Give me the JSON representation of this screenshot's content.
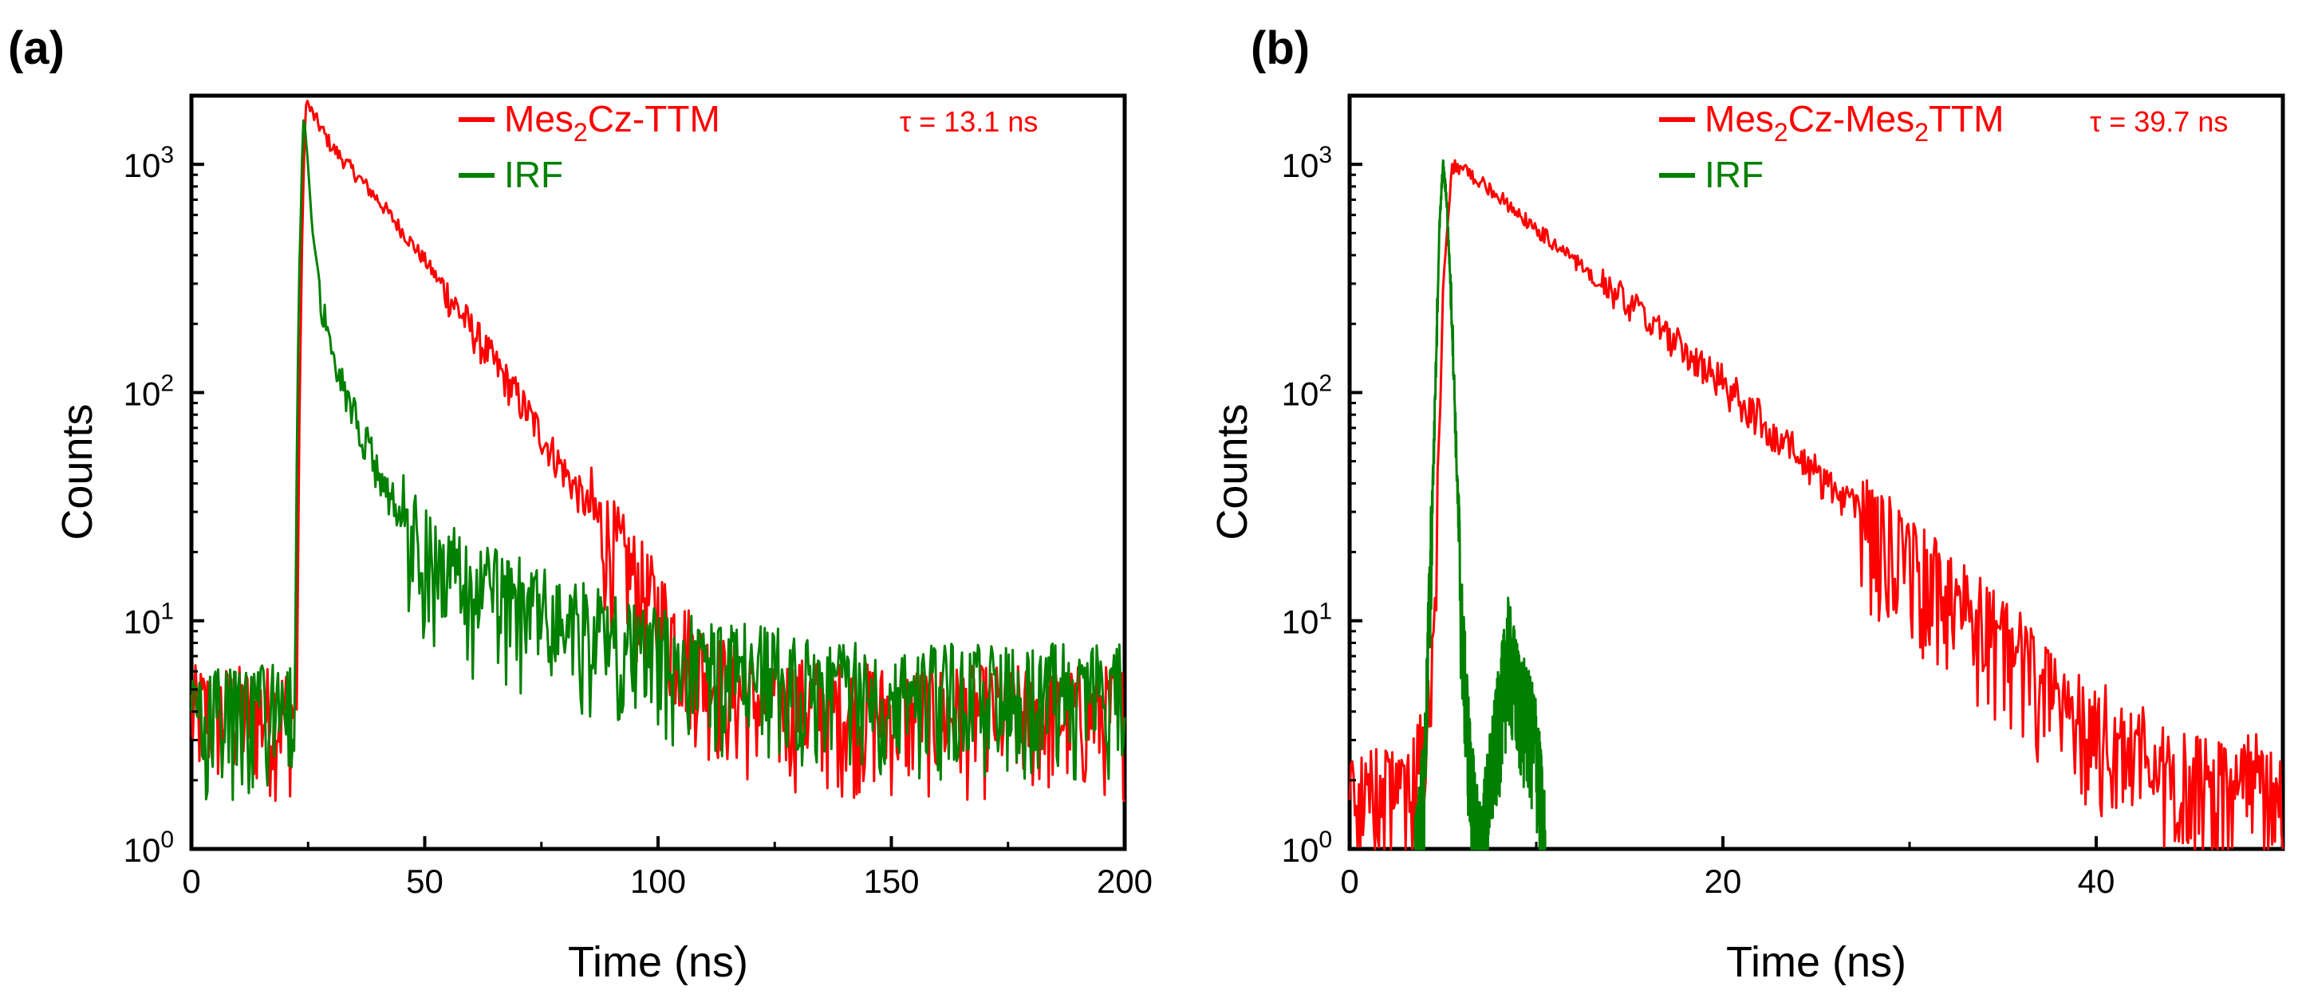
{
  "chart_data": [
    {
      "panel_label": "(a)",
      "type": "line",
      "yscale": "log",
      "xlabel": "Time (ns)",
      "ylabel": "Counts",
      "xlim": [
        0,
        200
      ],
      "ylim": [
        1,
        2000
      ],
      "xticks": [
        {
          "value": 0,
          "label": "0"
        },
        {
          "value": 50,
          "label": "50"
        },
        {
          "value": 100,
          "label": "100"
        },
        {
          "value": 150,
          "label": "150"
        },
        {
          "value": 200,
          "label": "200"
        }
      ],
      "yticks": [
        {
          "value": 1,
          "base": "10",
          "exp": "0"
        },
        {
          "value": 10,
          "base": "10",
          "exp": "1"
        },
        {
          "value": 100,
          "base": "10",
          "exp": "2"
        },
        {
          "value": 1000,
          "base": "10",
          "exp": "3"
        }
      ],
      "legend": [
        {
          "name_parts": [
            [
              "Mes",
              ""
            ],
            [
              "2",
              "sub"
            ],
            [
              "Cz-TTM",
              ""
            ]
          ],
          "color": "#ff0000"
        },
        {
          "name_parts": [
            [
              "IRF",
              ""
            ]
          ],
          "color": "#008000"
        }
      ],
      "annotation": {
        "text": "τ = 13.1 ns",
        "color": "#ff0000"
      },
      "series": [
        {
          "name": "Mes2Cz-TTM",
          "color": "#ff0000",
          "x": [
            0,
            22.5,
            23.5,
            24.5,
            25,
            30,
            40,
            50,
            60,
            70,
            80,
            90,
            100,
            110,
            120,
            150,
            200
          ],
          "y": [
            4,
            4,
            300,
            2000,
            1800,
            1200,
            700,
            380,
            190,
            95,
            45,
            22,
            11,
            6,
            4.5,
            4,
            4
          ]
        },
        {
          "name": "IRF",
          "color": "#008000",
          "x": [
            0,
            22,
            23,
            24,
            25,
            26,
            28,
            30,
            35,
            40,
            45,
            50,
            60,
            70,
            80,
            100,
            120,
            150,
            200
          ],
          "y": [
            4,
            4,
            300,
            1600,
            1000,
            500,
            250,
            160,
            80,
            45,
            28,
            20,
            14,
            12,
            10,
            7,
            6,
            5,
            5
          ]
        }
      ]
    },
    {
      "panel_label": "(b)",
      "type": "line",
      "yscale": "log",
      "xlabel": "Time (ns)",
      "ylabel": "Counts",
      "xlim": [
        0,
        50
      ],
      "ylim": [
        1,
        2000
      ],
      "xticks": [
        {
          "value": 0,
          "label": "0"
        },
        {
          "value": 20,
          "label": "20"
        },
        {
          "value": 40,
          "label": "40"
        }
      ],
      "yticks": [
        {
          "value": 1,
          "base": "10",
          "exp": "0"
        },
        {
          "value": 10,
          "base": "10",
          "exp": "1"
        },
        {
          "value": 100,
          "base": "10",
          "exp": "2"
        },
        {
          "value": 1000,
          "base": "10",
          "exp": "3"
        }
      ],
      "legend": [
        {
          "name_parts": [
            [
              "Mes",
              ""
            ],
            [
              "2",
              "sub"
            ],
            [
              "Cz-Mes",
              ""
            ],
            [
              "2",
              "sub"
            ],
            [
              "TTM",
              ""
            ]
          ],
          "color": "#ff0000"
        },
        {
          "name_parts": [
            [
              "IRF",
              ""
            ]
          ],
          "color": "#008000"
        }
      ],
      "annotation": {
        "text": "τ = 39.7 ns",
        "color": "#ff0000"
      },
      "series": [
        {
          "name": "Mes2Cz-Mes2TTM",
          "color": "#ff0000",
          "x": [
            0,
            3.5,
            4,
            4.5,
            5,
            5.5,
            7,
            10,
            15,
            20,
            25,
            30,
            35,
            40,
            45,
            50
          ],
          "y": [
            1.6,
            2,
            3,
            8,
            300,
            1000,
            850,
            520,
            240,
            110,
            45,
            18,
            8,
            3.5,
            2,
            2
          ]
        },
        {
          "name": "IRF",
          "color": "#008000",
          "x": [
            3.5,
            4,
            4.5,
            4.8,
            5,
            5.2,
            5.5,
            6,
            6.5,
            7,
            8.5,
            9,
            9.5,
            10,
            10.5
          ],
          "y": [
            1,
            2,
            50,
            500,
            1000,
            700,
            200,
            10,
            2,
            1,
            8,
            5,
            4,
            3,
            1
          ]
        }
      ]
    }
  ]
}
